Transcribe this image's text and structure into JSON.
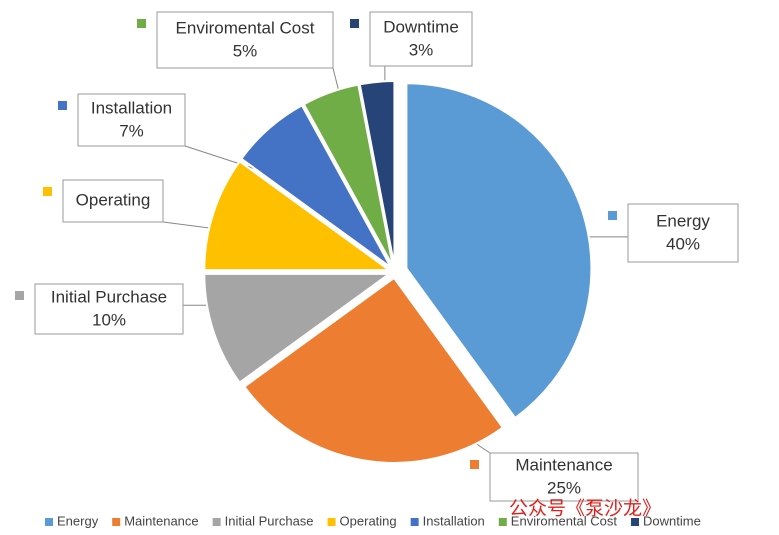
{
  "chart_data": {
    "type": "pie",
    "categories": [
      "Energy",
      "Maintenance",
      "Initial Purchase",
      "Operating",
      "Installation",
      "Enviromental Cost",
      "Downtime"
    ],
    "values": [
      40,
      25,
      10,
      10,
      7,
      5,
      3
    ],
    "value_labels": [
      "40%",
      "25%",
      "10%",
      null,
      "7%",
      "5%",
      "3%"
    ],
    "colors": [
      "#5b9bd5",
      "#ed7d31",
      "#a5a5a5",
      "#ffc000",
      "#4472c4",
      "#70ad47",
      "#264478"
    ],
    "legend": "bottom",
    "watermark": "公众号《泵沙龙》"
  }
}
